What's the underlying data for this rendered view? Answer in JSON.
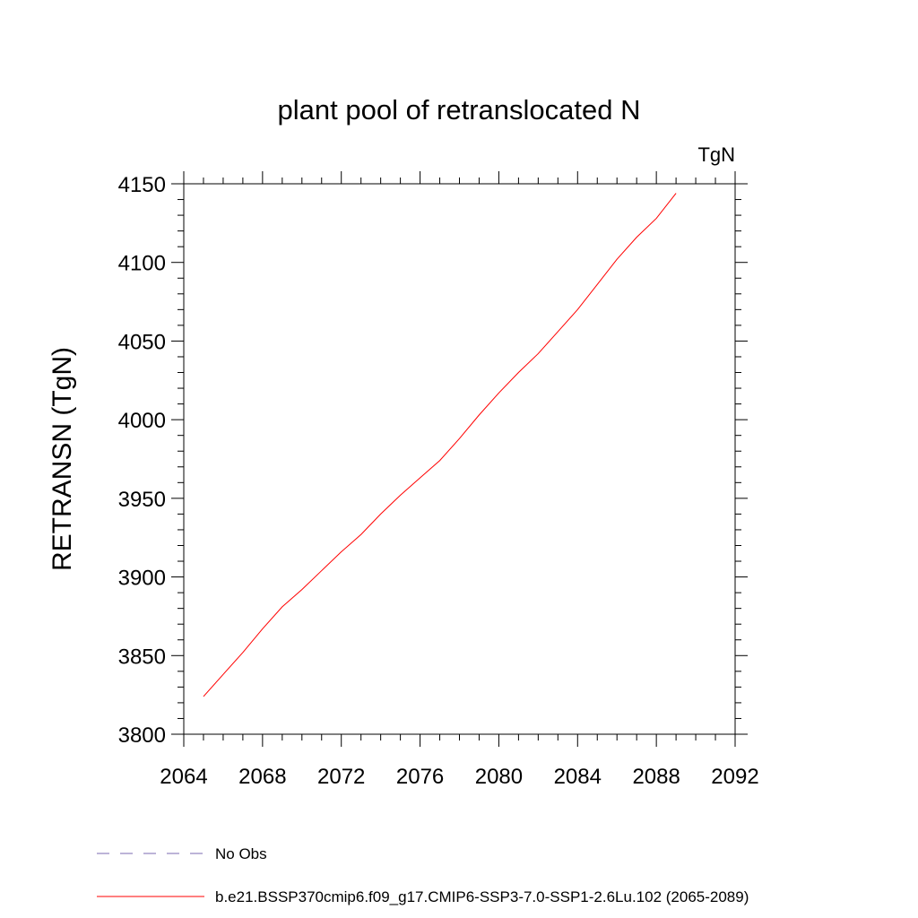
{
  "chart_data": {
    "type": "line",
    "title": "plant pool of retranslocated N",
    "units_label": "TgN",
    "ylabel": "RETRANSN  (TgN)",
    "xlabel": "",
    "xlim": [
      2064,
      2092
    ],
    "ylim": [
      3800,
      4150
    ],
    "x_ticks": [
      2064,
      2068,
      2072,
      2076,
      2080,
      2084,
      2088,
      2092
    ],
    "y_ticks": [
      3800,
      3850,
      3900,
      3950,
      4000,
      4050,
      4100,
      4150
    ],
    "x_minor_step": 1,
    "y_minor_step": 10,
    "grid": false,
    "legend_position": "bottom-left",
    "series": [
      {
        "name": "No Obs",
        "color": "#7b68b0",
        "dash": "dashed",
        "x": [],
        "y": []
      },
      {
        "name": "b.e21.BSSP370cmip6.f09_g17.CMIP6-SSP3-7.0-SSP1-2.6Lu.102 (2065-2089)",
        "color": "#ff0000",
        "dash": "solid",
        "x": [
          2065,
          2066,
          2067,
          2068,
          2069,
          2070,
          2071,
          2072,
          2073,
          2074,
          2075,
          2076,
          2077,
          2078,
          2079,
          2080,
          2081,
          2082,
          2083,
          2084,
          2085,
          2086,
          2087,
          2088,
          2089
        ],
        "y": [
          3824,
          3838,
          3852,
          3867,
          3881,
          3892,
          3904,
          3916,
          3927,
          3940,
          3952,
          3963,
          3974,
          3988,
          4003,
          4017,
          4030,
          4042,
          4056,
          4070,
          4086,
          4102,
          4116,
          4128,
          4144
        ]
      }
    ]
  }
}
